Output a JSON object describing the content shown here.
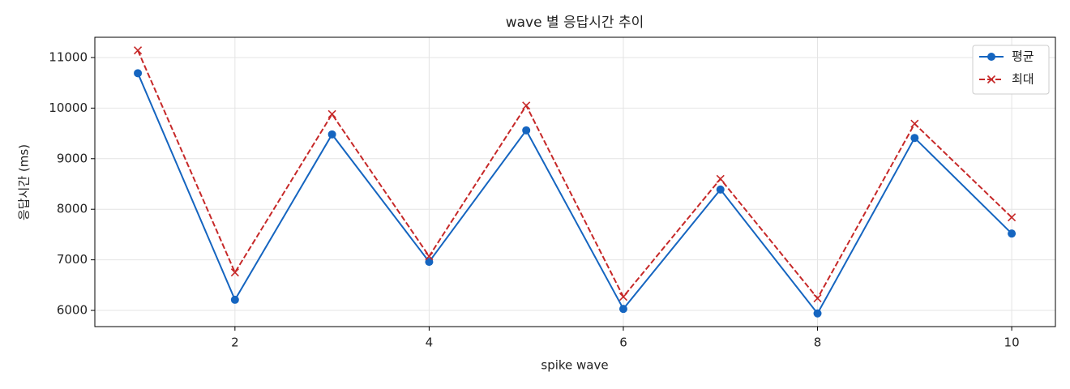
{
  "chart_data": {
    "type": "line",
    "title": "wave 별 응답시간 추이",
    "x_label": "spike wave",
    "y_label": "응답시간 (ms)",
    "x": [
      1,
      2,
      3,
      4,
      5,
      6,
      7,
      8,
      9,
      10
    ],
    "series": [
      {
        "name": "평균",
        "color": "#1565c0",
        "marker": "o",
        "linestyle": "solid",
        "values": [
          10690,
          6210,
          9480,
          6960,
          9560,
          6030,
          8390,
          5940,
          9410,
          7520
        ]
      },
      {
        "name": "최대",
        "color": "#c62828",
        "marker": "x",
        "linestyle": "dashed",
        "values": [
          11140,
          6750,
          9880,
          7070,
          10050,
          6270,
          8600,
          6240,
          9690,
          7840
        ]
      }
    ],
    "xlim": [
      0.557,
      10.45
    ],
    "xticks": [
      2,
      4,
      6,
      8,
      10
    ],
    "ylim": [
      5680,
      11400
    ],
    "yticks": [
      6000,
      7000,
      8000,
      9000,
      10000,
      11000
    ],
    "grid": true,
    "legend": "upper right"
  }
}
